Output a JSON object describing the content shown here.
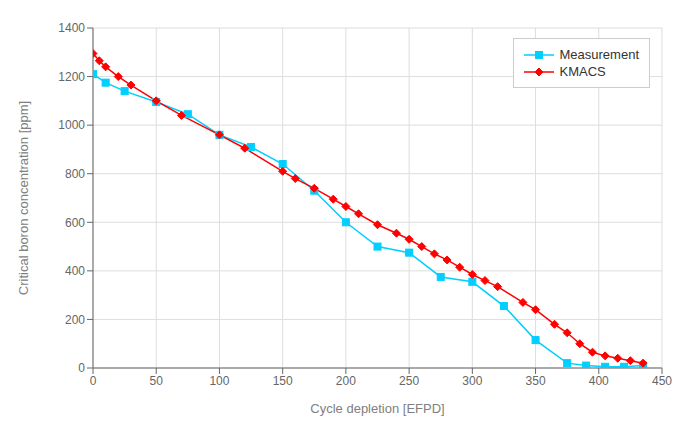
{
  "chart_data": {
    "type": "line",
    "xlabel": "Cycle depletion [EFPD]",
    "ylabel": "Critical boron concentration [ppm]",
    "xlim": [
      0,
      450
    ],
    "ylim": [
      0,
      1400
    ],
    "xticks": [
      0,
      50,
      100,
      150,
      200,
      250,
      300,
      350,
      400,
      450
    ],
    "yticks": [
      0,
      200,
      400,
      600,
      800,
      1000,
      1200,
      1400
    ],
    "grid": true,
    "legend": "upper right",
    "series": [
      {
        "name": "Measurement",
        "color": "#00cfff",
        "marker": "square",
        "x": [
          0,
          10,
          25,
          50,
          75,
          100,
          125,
          150,
          175,
          200,
          225,
          250,
          275,
          300,
          325,
          350,
          375,
          390,
          405,
          420,
          435
        ],
        "values": [
          1210,
          1175,
          1140,
          1095,
          1045,
          960,
          910,
          840,
          730,
          600,
          500,
          475,
          375,
          355,
          255,
          115,
          20,
          10,
          5,
          5,
          10
        ]
      },
      {
        "name": "KMACS",
        "color": "#ff0000",
        "marker": "diamond",
        "x": [
          0,
          5,
          10,
          20,
          30,
          50,
          70,
          100,
          120,
          150,
          160,
          175,
          190,
          200,
          210,
          225,
          240,
          250,
          260,
          270,
          280,
          290,
          300,
          310,
          320,
          340,
          350,
          365,
          375,
          385,
          395,
          405,
          415,
          425,
          435
        ],
        "values": [
          1295,
          1265,
          1240,
          1200,
          1165,
          1100,
          1040,
          960,
          905,
          810,
          780,
          740,
          695,
          665,
          635,
          590,
          555,
          530,
          500,
          470,
          445,
          415,
          385,
          360,
          335,
          270,
          240,
          180,
          145,
          100,
          65,
          50,
          40,
          30,
          20
        ]
      }
    ]
  }
}
